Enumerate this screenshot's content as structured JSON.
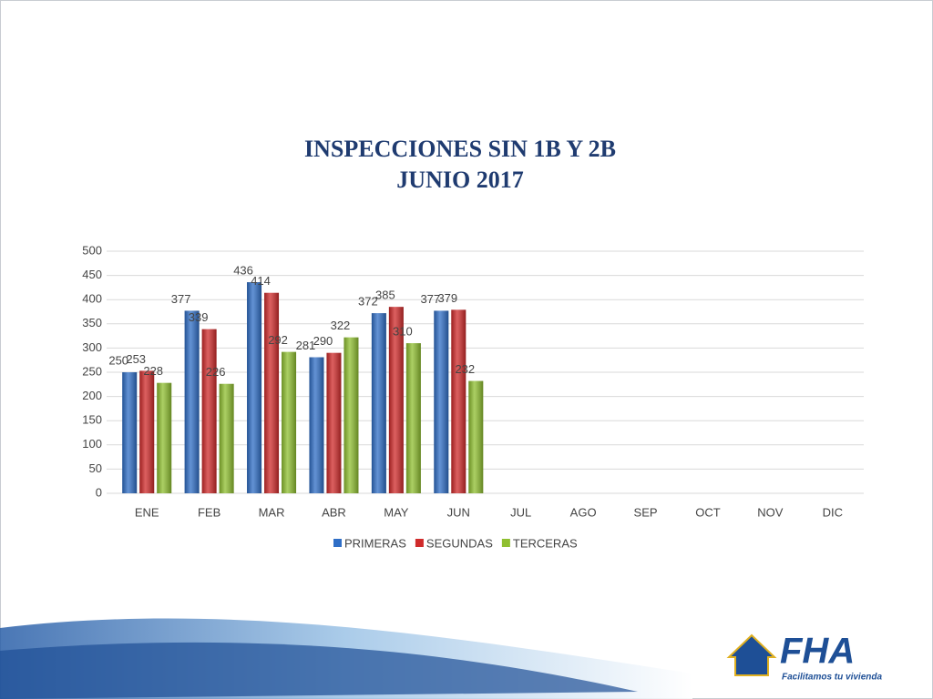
{
  "chart_data": {
    "type": "bar",
    "title": "INSPECCIONES SIN 1B Y 2B",
    "subtitle": "JUNIO 2017",
    "categories": [
      "ENE",
      "FEB",
      "MAR",
      "ABR",
      "MAY",
      "JUN",
      "JUL",
      "AGO",
      "SEP",
      "OCT",
      "NOV",
      "DIC"
    ],
    "series": [
      {
        "name": "PRIMERAS",
        "color": "#2f6ec6",
        "values": [
          250,
          377,
          436,
          281,
          372,
          377,
          null,
          null,
          null,
          null,
          null,
          null
        ]
      },
      {
        "name": "SEGUNDAS",
        "color": "#d02b2b",
        "values": [
          253,
          339,
          414,
          290,
          385,
          379,
          null,
          null,
          null,
          null,
          null,
          null
        ]
      },
      {
        "name": "TERCERAS",
        "color": "#8fbf30",
        "values": [
          228,
          226,
          292,
          322,
          310,
          232,
          null,
          null,
          null,
          null,
          null,
          null
        ]
      }
    ],
    "ylim": [
      0,
      500
    ],
    "yticks": [
      0,
      50,
      100,
      150,
      200,
      250,
      300,
      350,
      400,
      450,
      500
    ],
    "grid": true,
    "legend": "bottom"
  },
  "logo": {
    "name": "FHA",
    "tagline": "Facilitamos tu vivienda"
  }
}
